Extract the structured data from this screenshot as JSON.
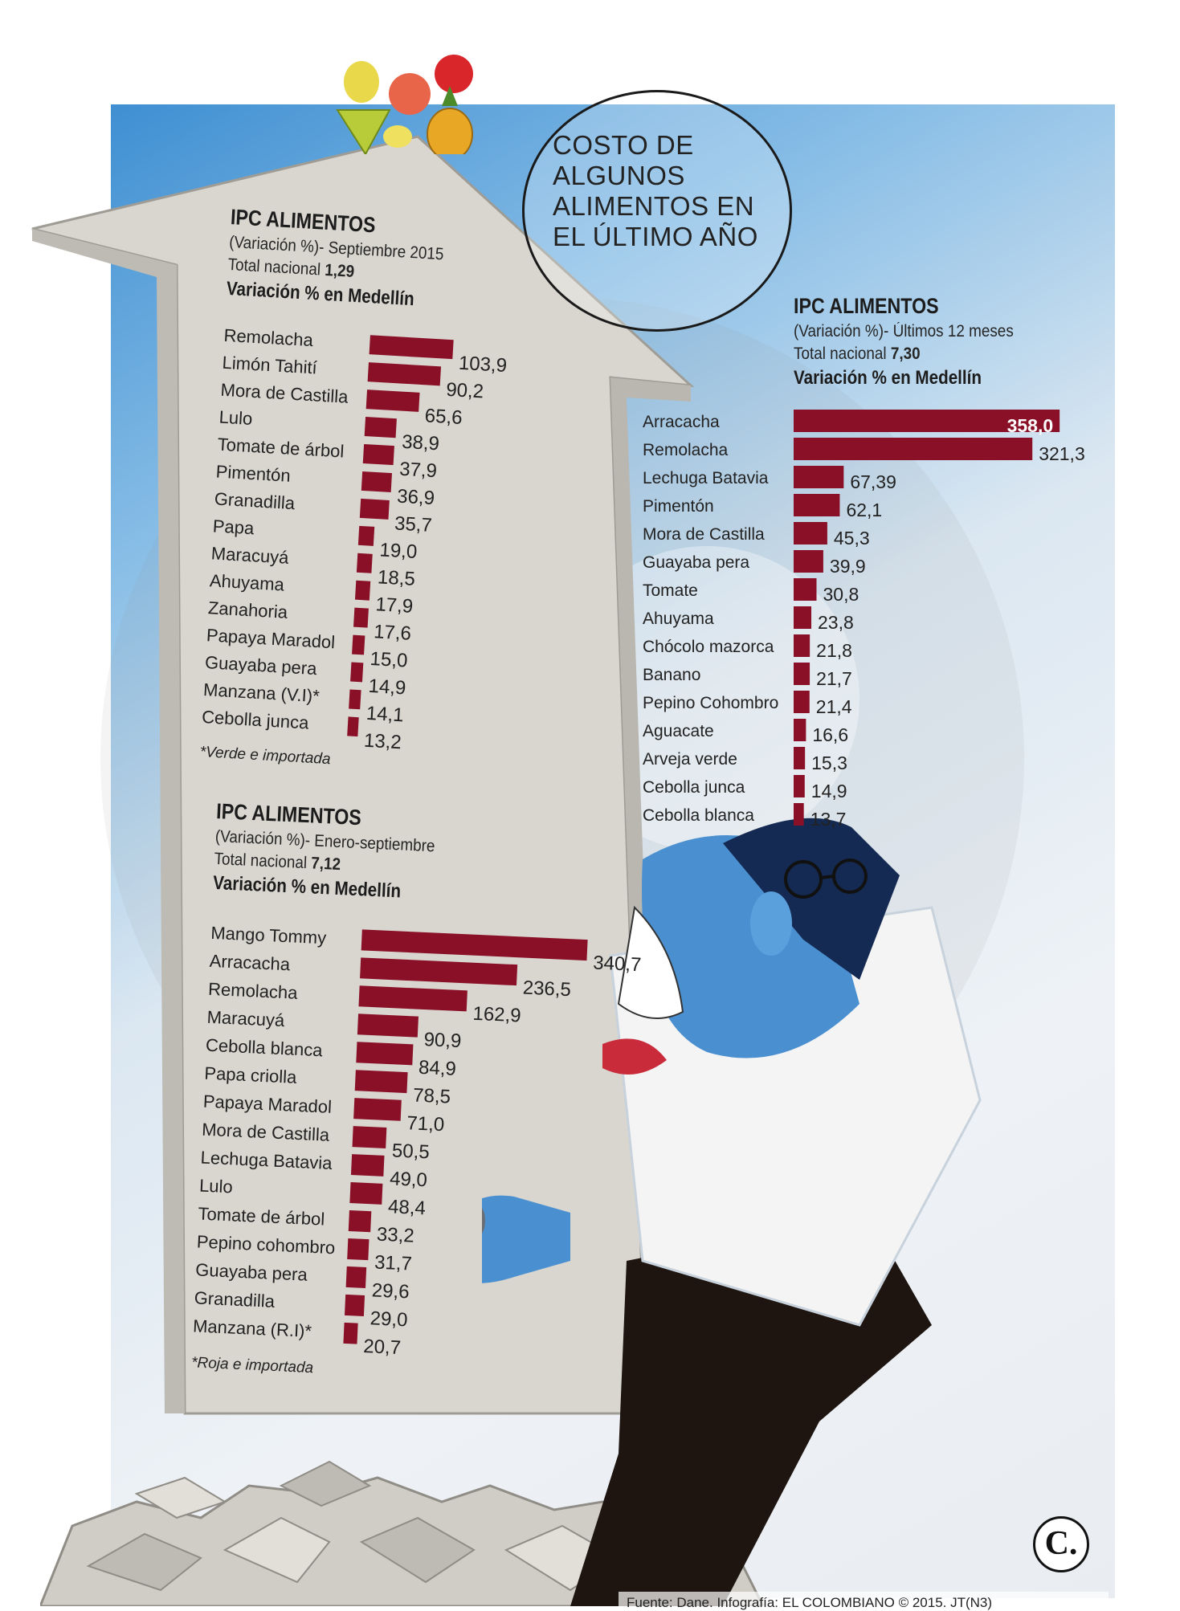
{
  "page": {
    "title_lines": [
      "COSTO DE",
      "ALGUNOS",
      "ALIMENTOS EN",
      "EL ÚLTIMO AÑO"
    ],
    "source": "Fuente: Dane.  Infografía: EL COLOMBIANO © 2015. JT(N3)",
    "logo": "C.",
    "colors": {
      "bar": "#8a1027",
      "bar_label": "#ffffff",
      "sky": "#6aaee0",
      "arrow": "#d7d5ce"
    }
  },
  "chart_data": [
    {
      "type": "bar",
      "orientation": "horizontal",
      "title": "IPC ALIMENTOS",
      "subtitle": "(Variación %)- Septiembre 2015",
      "total_label": "Total nacional",
      "total_value": "1,29",
      "series_title": "Variación % en Medellín",
      "categories": [
        "Remolacha",
        "Limón Tahití",
        "Mora de Castilla",
        "Lulo",
        "Tomate de árbol",
        "Pimentón",
        "Granadilla",
        "Papa",
        "Maracuyá",
        "Ahuyama",
        "Zanahoria",
        "Papaya Maradol",
        "Guayaba pera",
        "Manzana (V.I)*",
        "Cebolla junca"
      ],
      "values": [
        103.9,
        90.2,
        65.6,
        38.9,
        37.9,
        36.9,
        35.7,
        19.0,
        18.5,
        17.9,
        17.6,
        15.0,
        14.9,
        14.1,
        13.2
      ],
      "value_labels": [
        "103,9",
        "90,2",
        "65,6",
        "38,9",
        "37,9",
        "36,9",
        "35,7",
        "19,0",
        "18,5",
        "17,9",
        "17,6",
        "15,0",
        "14,9",
        "14,1",
        "13,2"
      ],
      "note": "*Verde e importada",
      "xlim": [
        0,
        120
      ]
    },
    {
      "type": "bar",
      "orientation": "horizontal",
      "title": "IPC ALIMENTOS",
      "subtitle": "(Variación %)- Enero-septiembre",
      "total_label": "Total nacional",
      "total_value": "7,12",
      "series_title": "Variación % en Medellín",
      "categories": [
        "Mango Tommy",
        "Arracacha",
        "Remolacha",
        "Maracuyá",
        "Cebolla blanca",
        "Papa criolla",
        "Papaya Maradol",
        "Mora de Castilla",
        "Lechuga Batavia",
        "Lulo",
        "Tomate de árbol",
        "Pepino cohombro",
        "Guayaba pera",
        "Granadilla",
        "Manzana (R.I)*"
      ],
      "values": [
        340.7,
        236.5,
        162.9,
        90.9,
        84.9,
        78.5,
        71.0,
        50.5,
        49.0,
        48.4,
        33.2,
        31.7,
        29.6,
        29.0,
        20.7
      ],
      "value_labels": [
        "340,7",
        "236,5",
        "162,9",
        "90,9",
        "84,9",
        "78,5",
        "71,0",
        "50,5",
        "49,0",
        "48,4",
        "33,2",
        "31,7",
        "29,6",
        "29,0",
        "20,7"
      ],
      "note": "*Roja e importada",
      "xlim": [
        0,
        400
      ]
    },
    {
      "type": "bar",
      "orientation": "horizontal",
      "title": "IPC ALIMENTOS",
      "subtitle": "(Variación %)- Últimos 12 meses",
      "total_label": "Total nacional",
      "total_value": "7,30",
      "series_title": "Variación % en Medellín",
      "categories": [
        "Arracacha",
        "Remolacha",
        "Lechuga Batavia",
        "Pimentón",
        "Mora de Castilla",
        "Guayaba pera",
        "Tomate",
        "Ahuyama",
        "Chócolo mazorca",
        "Banano",
        "Pepino Cohombro",
        "Aguacate",
        "Arveja verde",
        "Cebolla junca",
        "Cebolla blanca"
      ],
      "values": [
        358.0,
        321.3,
        67.39,
        62.1,
        45.3,
        39.9,
        30.8,
        23.8,
        21.8,
        21.7,
        21.4,
        16.6,
        15.3,
        14.9,
        13.7
      ],
      "value_labels": [
        "358,0",
        "321,3",
        "67,39",
        "62,1",
        "45,3",
        "39,9",
        "30,8",
        "23,8",
        "21,8",
        "21,7",
        "21,4",
        "16,6",
        "15,3",
        "14,9",
        "13,7"
      ],
      "xlim": [
        0,
        400
      ]
    }
  ]
}
